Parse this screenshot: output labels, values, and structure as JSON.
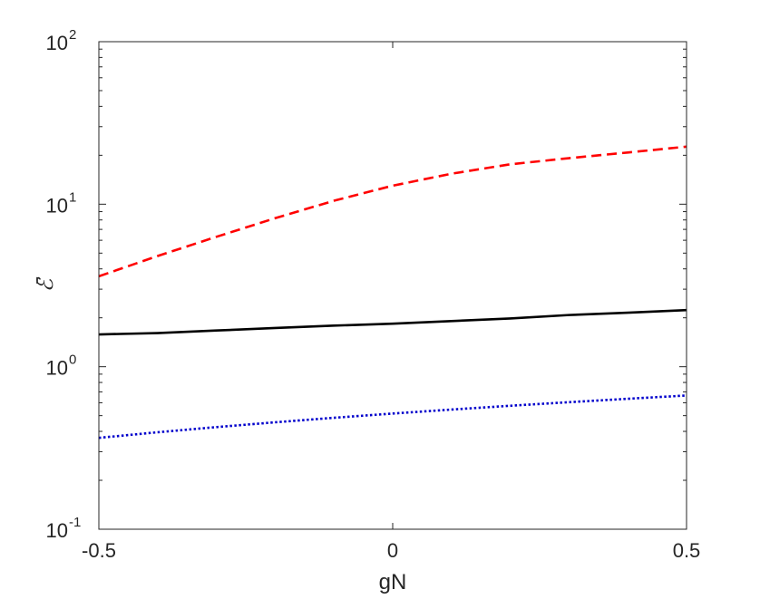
{
  "chart_data": {
    "type": "line",
    "title": "",
    "xlabel": "gN",
    "ylabel": "ℰ̄",
    "xlim": [
      -0.5,
      0.5
    ],
    "ylim": [
      0.1,
      100
    ],
    "yscale": "log",
    "grid": false,
    "legend": "none",
    "x_ticks": [
      {
        "value": -0.5,
        "label": "-0.5"
      },
      {
        "value": 0,
        "label": "0"
      },
      {
        "value": 0.5,
        "label": "0.5"
      }
    ],
    "y_ticks": [
      {
        "value": 0.1,
        "base": "10",
        "exp": "-1"
      },
      {
        "value": 1,
        "base": "10",
        "exp": "0"
      },
      {
        "value": 10,
        "base": "10",
        "exp": "1"
      },
      {
        "value": 100,
        "base": "10",
        "exp": "2"
      }
    ],
    "series": [
      {
        "color": "#ff0000",
        "style": "dashed",
        "x": [
          -0.5,
          -0.4,
          -0.3,
          -0.2,
          -0.1,
          0,
          0.1,
          0.2,
          0.3,
          0.4,
          0.5
        ],
        "values": [
          3.6,
          4.8,
          6.3,
          8.2,
          10.5,
          13.0,
          15.4,
          17.6,
          19.2,
          20.8,
          22.6
        ]
      },
      {
        "color": "#000000",
        "style": "solid",
        "x": [
          -0.5,
          -0.4,
          -0.3,
          -0.2,
          -0.1,
          0,
          0.1,
          0.2,
          0.3,
          0.4,
          0.5
        ],
        "values": [
          1.58,
          1.61,
          1.67,
          1.73,
          1.79,
          1.84,
          1.91,
          1.98,
          2.08,
          2.15,
          2.23
        ]
      },
      {
        "color": "#0000cc",
        "style": "dotted",
        "x": [
          -0.5,
          -0.4,
          -0.3,
          -0.2,
          -0.1,
          0,
          0.1,
          0.2,
          0.3,
          0.4,
          0.5
        ],
        "values": [
          0.365,
          0.395,
          0.425,
          0.455,
          0.485,
          0.515,
          0.545,
          0.575,
          0.605,
          0.635,
          0.665
        ]
      }
    ]
  }
}
